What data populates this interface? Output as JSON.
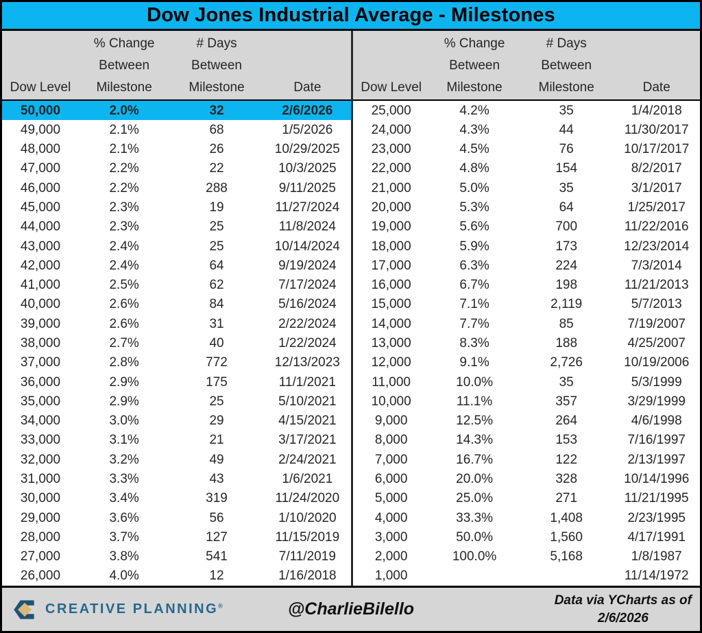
{
  "title": "Dow Jones Industrial Average - Milestones",
  "table_header": {
    "dow_level": "Dow Level",
    "pct_change_lines": [
      "% Change",
      "Between",
      "Milestone"
    ],
    "days_lines": [
      "# Days",
      "Between",
      "Milestone"
    ],
    "date": "Date"
  },
  "chart_data": {
    "type": "table",
    "title": "Dow Jones Industrial Average - Milestones",
    "columns": [
      "Dow Level",
      "% Change Between Milestone",
      "# Days Between Milestone",
      "Date"
    ],
    "layout": {
      "split": 25,
      "highlight_row": "50,000",
      "panes": 2
    },
    "rows": [
      [
        "50,000",
        "2.0%",
        "32",
        "2/6/2026"
      ],
      [
        "49,000",
        "2.1%",
        "68",
        "1/5/2026"
      ],
      [
        "48,000",
        "2.1%",
        "26",
        "10/29/2025"
      ],
      [
        "47,000",
        "2.2%",
        "22",
        "10/3/2025"
      ],
      [
        "46,000",
        "2.2%",
        "288",
        "9/11/2025"
      ],
      [
        "45,000",
        "2.3%",
        "19",
        "11/27/2024"
      ],
      [
        "44,000",
        "2.3%",
        "25",
        "11/8/2024"
      ],
      [
        "43,000",
        "2.4%",
        "25",
        "10/14/2024"
      ],
      [
        "42,000",
        "2.4%",
        "64",
        "9/19/2024"
      ],
      [
        "41,000",
        "2.5%",
        "62",
        "7/17/2024"
      ],
      [
        "40,000",
        "2.6%",
        "84",
        "5/16/2024"
      ],
      [
        "39,000",
        "2.6%",
        "31",
        "2/22/2024"
      ],
      [
        "38,000",
        "2.7%",
        "40",
        "1/22/2024"
      ],
      [
        "37,000",
        "2.8%",
        "772",
        "12/13/2023"
      ],
      [
        "36,000",
        "2.9%",
        "175",
        "11/1/2021"
      ],
      [
        "35,000",
        "2.9%",
        "25",
        "5/10/2021"
      ],
      [
        "34,000",
        "3.0%",
        "29",
        "4/15/2021"
      ],
      [
        "33,000",
        "3.1%",
        "21",
        "3/17/2021"
      ],
      [
        "32,000",
        "3.2%",
        "49",
        "2/24/2021"
      ],
      [
        "31,000",
        "3.3%",
        "43",
        "1/6/2021"
      ],
      [
        "30,000",
        "3.4%",
        "319",
        "11/24/2020"
      ],
      [
        "29,000",
        "3.6%",
        "56",
        "1/10/2020"
      ],
      [
        "28,000",
        "3.7%",
        "127",
        "11/15/2019"
      ],
      [
        "27,000",
        "3.8%",
        "541",
        "7/11/2019"
      ],
      [
        "26,000",
        "4.0%",
        "12",
        "1/16/2018"
      ],
      [
        "25,000",
        "4.2%",
        "35",
        "1/4/2018"
      ],
      [
        "24,000",
        "4.3%",
        "44",
        "11/30/2017"
      ],
      [
        "23,000",
        "4.5%",
        "76",
        "10/17/2017"
      ],
      [
        "22,000",
        "4.8%",
        "154",
        "8/2/2017"
      ],
      [
        "21,000",
        "5.0%",
        "35",
        "3/1/2017"
      ],
      [
        "20,000",
        "5.3%",
        "64",
        "1/25/2017"
      ],
      [
        "19,000",
        "5.6%",
        "700",
        "11/22/2016"
      ],
      [
        "18,000",
        "5.9%",
        "173",
        "12/23/2014"
      ],
      [
        "17,000",
        "6.3%",
        "224",
        "7/3/2014"
      ],
      [
        "16,000",
        "6.7%",
        "198",
        "11/21/2013"
      ],
      [
        "15,000",
        "7.1%",
        "2,119",
        "5/7/2013"
      ],
      [
        "14,000",
        "7.7%",
        "85",
        "7/19/2007"
      ],
      [
        "13,000",
        "8.3%",
        "188",
        "4/25/2007"
      ],
      [
        "12,000",
        "9.1%",
        "2,726",
        "10/19/2006"
      ],
      [
        "11,000",
        "10.0%",
        "35",
        "5/3/1999"
      ],
      [
        "10,000",
        "11.1%",
        "357",
        "3/29/1999"
      ],
      [
        "9,000",
        "12.5%",
        "264",
        "4/6/1998"
      ],
      [
        "8,000",
        "14.3%",
        "153",
        "7/16/1997"
      ],
      [
        "7,000",
        "16.7%",
        "122",
        "2/13/1997"
      ],
      [
        "6,000",
        "20.0%",
        "328",
        "10/14/1996"
      ],
      [
        "5,000",
        "25.0%",
        "271",
        "11/21/1995"
      ],
      [
        "4,000",
        "33.3%",
        "1,408",
        "2/23/1995"
      ],
      [
        "3,000",
        "50.0%",
        "1,560",
        "4/17/1991"
      ],
      [
        "2,000",
        "100.0%",
        "5,168",
        "1/8/1987"
      ],
      [
        "1,000",
        "",
        "",
        "11/14/1972"
      ]
    ]
  },
  "footer": {
    "brand": "CREATIVE PLANNING",
    "brand_reg": "®",
    "handle": "@CharlieBilello",
    "source_line1": "Data via YCharts as of",
    "source_line2": "2/6/2026"
  },
  "colors": {
    "accent_cyan": "#0CB5F0",
    "header_gray": "#D6D6D6",
    "brand_blue": "#26688E",
    "logo_navy": "#1D5273",
    "logo_gold": "#D9B87A",
    "border_black": "#000000"
  }
}
